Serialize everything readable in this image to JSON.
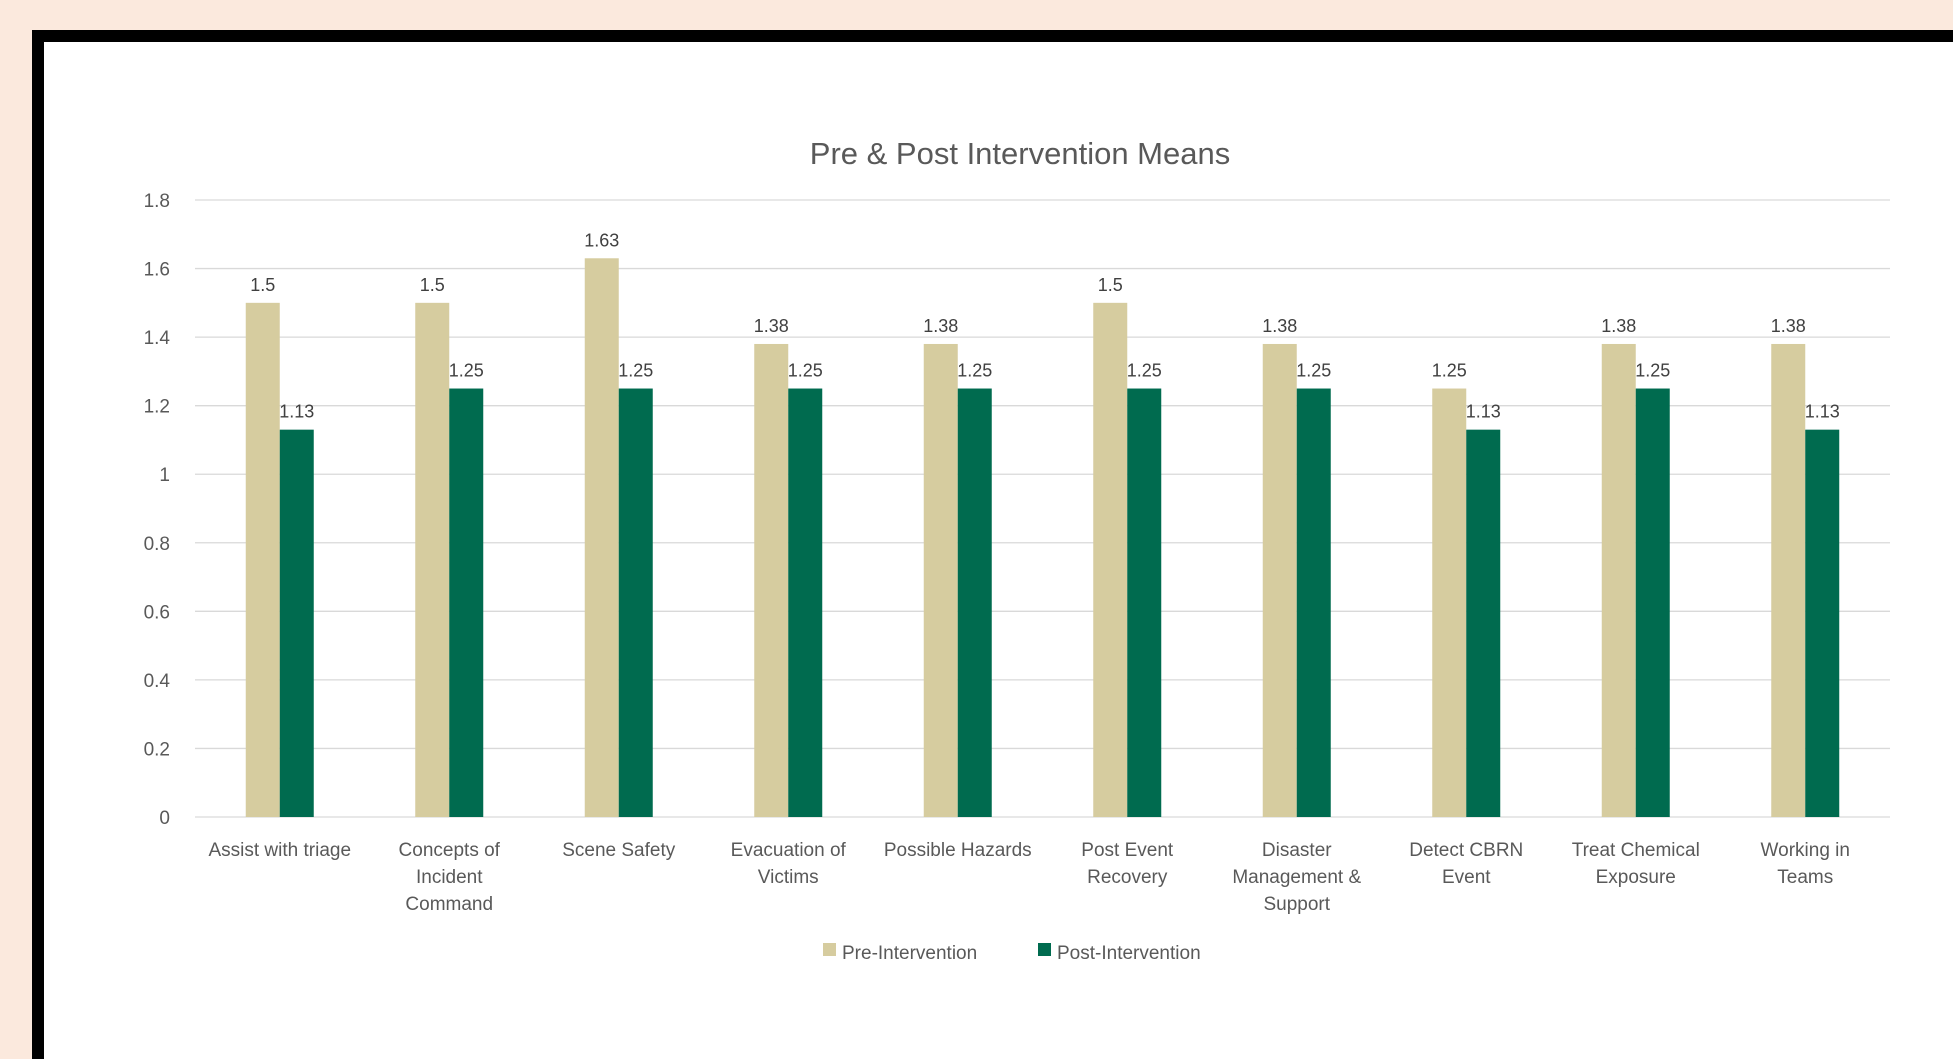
{
  "chart_data": {
    "type": "bar",
    "title": "Pre & Post Intervention Means",
    "categories": [
      [
        "Assist with triage"
      ],
      [
        "Concepts of",
        "Incident",
        "Command"
      ],
      [
        "Scene Safety"
      ],
      [
        "Evacuation of",
        "Victims"
      ],
      [
        "Possible Hazards"
      ],
      [
        "Post Event",
        "Recovery"
      ],
      [
        "Disaster",
        "Management &",
        "Support"
      ],
      [
        "Detect CBRN",
        "Event"
      ],
      [
        "Treat Chemical",
        "Exposure"
      ],
      [
        "Working in",
        "Teams"
      ]
    ],
    "series": [
      {
        "name": "Pre-Intervention",
        "color": "#d6cc9f",
        "values": [
          1.5,
          1.5,
          1.63,
          1.38,
          1.38,
          1.5,
          1.38,
          1.25,
          1.38,
          1.38
        ],
        "labels": [
          "1.5",
          "1.5",
          "1.63",
          "1.38",
          "1.38",
          "1.5",
          "1.38",
          "1.25",
          "1.38",
          "1.38"
        ]
      },
      {
        "name": "Post-Intervention",
        "color": "#006b4f",
        "values": [
          1.13,
          1.25,
          1.25,
          1.25,
          1.25,
          1.25,
          1.25,
          1.13,
          1.25,
          1.13
        ],
        "labels": [
          "1.13",
          "1.25",
          "1.25",
          "1.25",
          "1.25",
          "1.25",
          "1.25",
          "1.13",
          "1.25",
          "1.13"
        ]
      }
    ],
    "ylim": [
      0,
      1.8
    ],
    "yticks": [
      "0",
      "0.2",
      "0.4",
      "0.6",
      "0.8",
      "1",
      "1.2",
      "1.4",
      "1.6",
      "1.8"
    ],
    "grid": true,
    "legend_position": "bottom"
  }
}
